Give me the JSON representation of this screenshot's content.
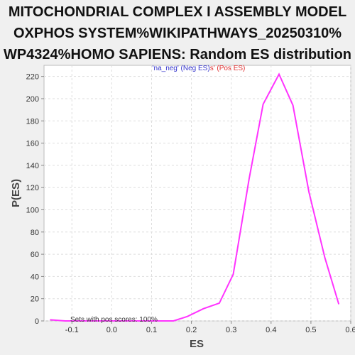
{
  "chart_data": {
    "type": "line",
    "title_lines": [
      "MITOCHONDRIAL COMPLEX I ASSEMBLY MODEL",
      "OXPHOS SYSTEM%WIKIPATHWAYS_20250310%",
      "WP4324%HOMO SAPIENS: Random ES distribution"
    ],
    "xlabel": "ES",
    "ylabel": "P(ES)",
    "xlim": [
      -0.17,
      0.6
    ],
    "ylim": [
      0,
      230
    ],
    "x_ticks": [
      "-0.1",
      "0.0",
      "0.1",
      "0.2",
      "0.3",
      "0.4",
      "0.5",
      "0.6"
    ],
    "x_tick_values": [
      -0.1,
      0.0,
      0.1,
      0.2,
      0.3,
      0.4,
      0.5,
      0.6
    ],
    "y_ticks": [
      "0",
      "20",
      "40",
      "60",
      "80",
      "100",
      "120",
      "140",
      "160",
      "180",
      "200",
      "220"
    ],
    "y_tick_values": [
      0,
      20,
      40,
      60,
      80,
      100,
      120,
      140,
      160,
      180,
      200,
      220
    ],
    "grid": true,
    "legend": {
      "neg_label": "'na_neg' (Neg ES)",
      "pos_label": "s' (Pos ES)",
      "neg_color": "#3333cc",
      "pos_color": "#e03030",
      "placement": "top-center"
    },
    "annotation": "Sets with pos scores: 100%",
    "series": [
      {
        "color": "#ff33ff",
        "x": [
          -0.155,
          -0.117,
          -0.08,
          -0.04,
          0.0,
          0.04,
          0.08,
          0.115,
          0.155,
          0.19,
          0.23,
          0.27,
          0.305,
          0.345,
          0.38,
          0.42,
          0.455,
          0.495,
          0.535,
          0.57
        ],
        "y": [
          1,
          0,
          0,
          0,
          0,
          0,
          0,
          0,
          0,
          4,
          11,
          16,
          42,
          128,
          195,
          222,
          194,
          116,
          57,
          15
        ]
      }
    ]
  }
}
